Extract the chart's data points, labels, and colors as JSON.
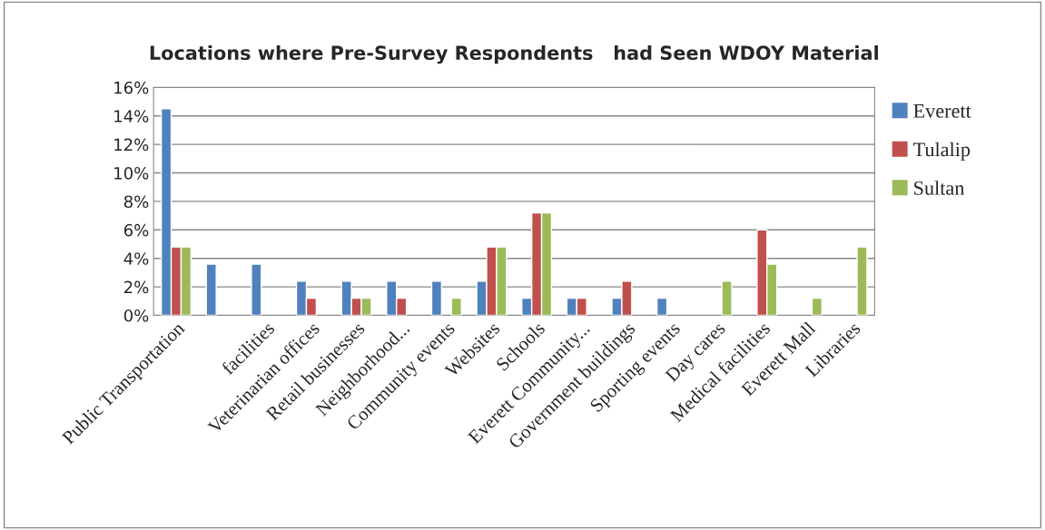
{
  "chart_data": {
    "type": "bar",
    "title": "Locations where Pre-Survey Respondents   had Seen WDOY Material",
    "categories": [
      "Public Transportation",
      null,
      "facilities",
      "Veterinarian offices",
      "Retail businesses",
      "Neighborhood...",
      "Community events",
      "Websites",
      "Schools",
      "Everett Community...",
      "Government buildings",
      "Sporting events",
      "Day cares",
      "Medical facilities",
      "Everett Mall",
      "Libraries"
    ],
    "series": [
      {
        "name": "Everett",
        "color": "#4f81bd",
        "values": [
          14.5,
          3.6,
          3.6,
          2.4,
          2.4,
          2.4,
          2.4,
          2.4,
          1.2,
          1.2,
          1.2,
          1.2,
          null,
          null,
          null,
          null
        ]
      },
      {
        "name": "Tulalip",
        "color": "#c0504d",
        "values": [
          4.8,
          null,
          null,
          1.2,
          1.2,
          1.2,
          null,
          4.8,
          7.2,
          1.2,
          2.4,
          null,
          null,
          6.0,
          null,
          null
        ]
      },
      {
        "name": "Sultan",
        "color": "#9bbb59",
        "values": [
          4.8,
          null,
          null,
          null,
          1.2,
          null,
          1.2,
          4.8,
          7.2,
          null,
          null,
          null,
          2.4,
          3.6,
          1.2,
          4.8
        ]
      }
    ],
    "ylim": [
      0,
      16
    ],
    "yticks": [
      {
        "value": 0,
        "label": "0%"
      },
      {
        "value": 2,
        "label": "2%"
      },
      {
        "value": 4,
        "label": "4%"
      },
      {
        "value": 6,
        "label": "6%"
      },
      {
        "value": 8,
        "label": "8%"
      },
      {
        "value": 10,
        "label": "10%"
      },
      {
        "value": 12,
        "label": "12%"
      },
      {
        "value": 14,
        "label": "14%"
      },
      {
        "value": 16,
        "label": "16%"
      }
    ],
    "grid": "y",
    "legend": "right"
  }
}
